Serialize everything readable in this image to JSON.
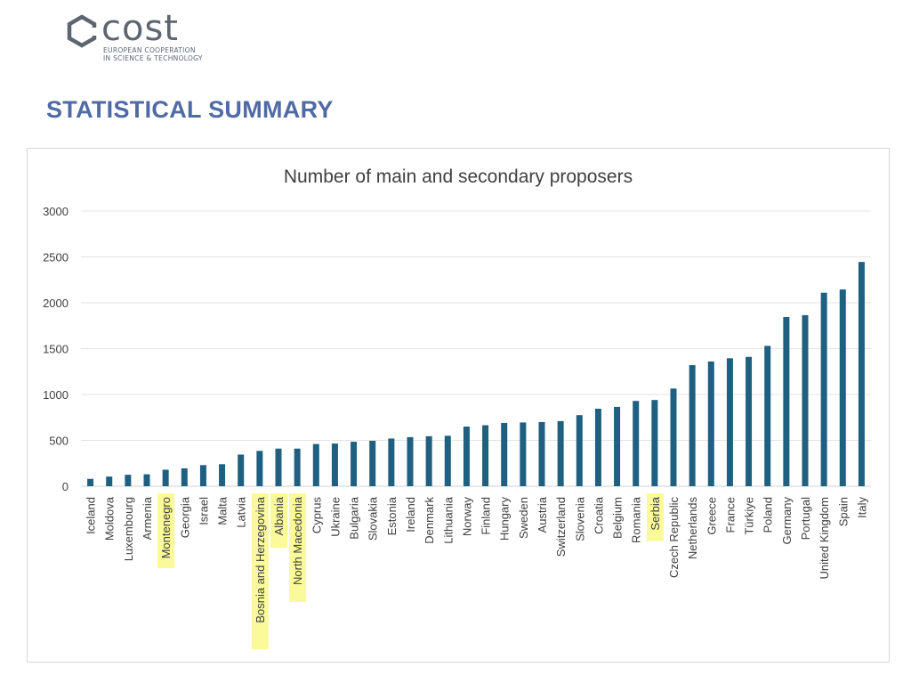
{
  "header": {
    "logo_word": "cost",
    "logo_line1": "EUROPEAN COOPERATION",
    "logo_line2": "IN SCIENCE & TECHNOLOGY"
  },
  "page": {
    "title": "STATISTICAL SUMMARY"
  },
  "colors": {
    "bar": "#1f5f80",
    "highlight": "#fafa9a",
    "title": "#4f6aa5"
  },
  "chart_data": {
    "type": "bar",
    "title": "Number of main and secondary proposers",
    "xlabel": "",
    "ylabel": "",
    "ylim": [
      0,
      3000
    ],
    "yticks": [
      0,
      500,
      1000,
      1500,
      2000,
      2500,
      3000
    ],
    "grid": true,
    "categories": [
      "Iceland",
      "Moldova",
      "Luxembourg",
      "Armenia",
      "Montenegro",
      "Georgia",
      "Israel",
      "Malta",
      "Latvia",
      "Bosnia and Herzegovina",
      "Albania",
      "North Macedonia",
      "Cyprus",
      "Ukraine",
      "Bulgaria",
      "Slovakia",
      "Estonia",
      "Ireland",
      "Denmark",
      "Lithuania",
      "Norway",
      "Finland",
      "Hungary",
      "Sweden",
      "Austria",
      "Switzerland",
      "Slovenia",
      "Croatia",
      "Belgium",
      "Romania",
      "Serbia",
      "Czech Republic",
      "Netherlands",
      "Greece",
      "France",
      "Türkiye",
      "Poland",
      "Germany",
      "Portugal",
      "United Kingdom",
      "Spain",
      "Italy"
    ],
    "values": [
      80,
      105,
      125,
      130,
      180,
      195,
      230,
      240,
      345,
      385,
      410,
      410,
      460,
      465,
      485,
      495,
      520,
      535,
      545,
      550,
      650,
      665,
      690,
      695,
      700,
      710,
      775,
      845,
      865,
      930,
      940,
      1065,
      1320,
      1360,
      1395,
      1410,
      1530,
      1845,
      1865,
      2110,
      2145,
      2445
    ],
    "highlighted": [
      "Montenegro",
      "Bosnia and Herzegovina",
      "Albania",
      "North Macedonia",
      "Serbia"
    ]
  }
}
